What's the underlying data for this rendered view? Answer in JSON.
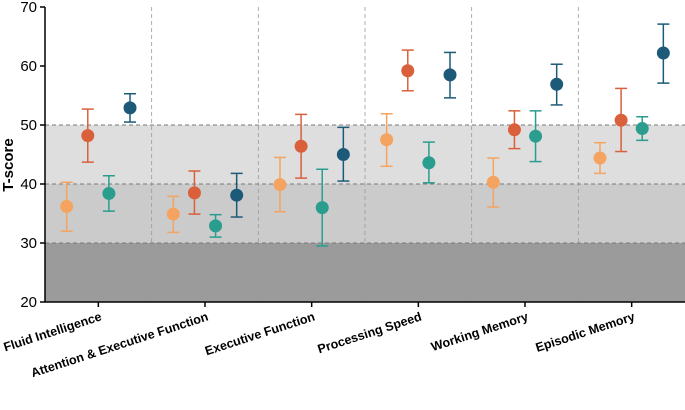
{
  "chart_data": {
    "type": "scatter",
    "title": "",
    "xlabel": "",
    "ylabel": "T-score",
    "ylim": [
      20,
      70
    ],
    "yticks": [
      20,
      30,
      40,
      50,
      60,
      70
    ],
    "categories": [
      "Fluid Intelligence",
      "Attention & Executive Function",
      "Executive Function",
      "Processing Speed",
      "Working Memory",
      "Episodic Memory"
    ],
    "bands": [
      {
        "from": 20,
        "to": 30,
        "color": "#9b9b9b"
      },
      {
        "from": 30,
        "to": 40,
        "color": "#cbcbcb"
      },
      {
        "from": 40,
        "to": 50,
        "color": "#dedede"
      }
    ],
    "grid": "dashed reference lines at 30, 40, 50; dashed vertical category separators",
    "series": [
      {
        "color": "#f4a460",
        "values": [
          36.2,
          34.9,
          39.9,
          47.5,
          40.3,
          44.4
        ],
        "err_low": [
          32.0,
          31.8,
          35.3,
          43.0,
          36.1,
          41.8
        ],
        "err_high": [
          40.3,
          37.9,
          44.5,
          51.9,
          44.4,
          47.0
        ]
      },
      {
        "color": "#d9603b",
        "values": [
          48.2,
          38.5,
          46.4,
          59.2,
          49.2,
          50.8
        ],
        "err_low": [
          43.7,
          34.9,
          41.0,
          55.8,
          46.0,
          45.5
        ],
        "err_high": [
          52.7,
          42.2,
          51.8,
          62.7,
          52.4,
          56.2
        ]
      },
      {
        "color": "#2a9d8f",
        "values": [
          38.4,
          32.9,
          36.0,
          43.6,
          48.1,
          49.4
        ],
        "err_low": [
          35.4,
          31.0,
          29.5,
          40.2,
          43.8,
          47.4
        ],
        "err_high": [
          41.4,
          34.8,
          42.5,
          47.1,
          52.4,
          51.4
        ]
      },
      {
        "color": "#1d5a7a",
        "values": [
          52.9,
          38.1,
          45.0,
          58.5,
          56.9,
          62.2
        ],
        "err_low": [
          50.5,
          34.4,
          40.5,
          54.6,
          53.4,
          57.1
        ],
        "err_high": [
          55.3,
          41.8,
          49.6,
          62.3,
          60.3,
          67.1
        ]
      }
    ]
  }
}
